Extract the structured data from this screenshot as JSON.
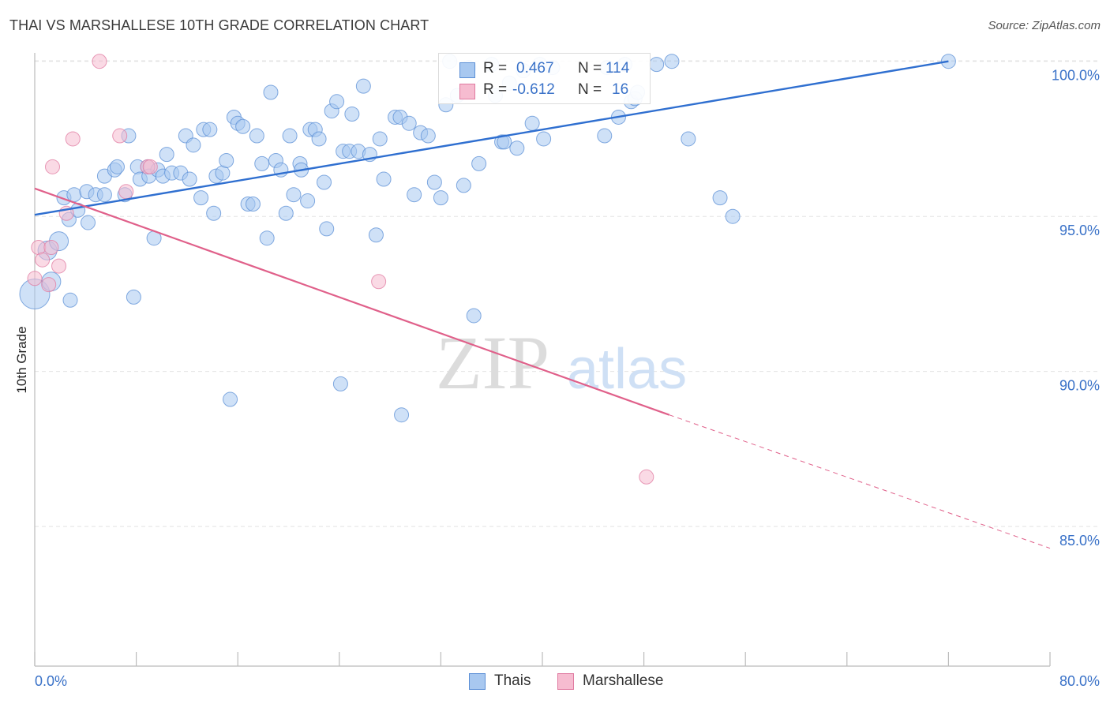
{
  "title": "THAI VS MARSHALLESE 10TH GRADE CORRELATION CHART",
  "source": "Source: ZipAtlas.com",
  "watermark": {
    "zip": "ZIP",
    "atlas": "atlas"
  },
  "legend": {
    "rows": [
      {
        "r_label": "R =",
        "r_value": "0.467",
        "n_label": "N =",
        "n_value": "114",
        "color": "#a8c8f0",
        "border": "#5b8fd6"
      },
      {
        "r_label": "R =",
        "r_value": "-0.612",
        "n_label": "N =",
        "n_value": "16",
        "color": "#f6bcd0",
        "border": "#e07aa0"
      }
    ]
  },
  "colors": {
    "thais_fill": "#a8c8f0",
    "thais_stroke": "#5b8fd6",
    "thais_line": "#2f6fd0",
    "marsh_fill": "#f6bcd0",
    "marsh_stroke": "#e07aa0",
    "marsh_line": "#e0608a",
    "tick_label": "#3a72c8",
    "grid": "#e3e3e3"
  },
  "chart_data": {
    "type": "scatter",
    "title": "THAI VS MARSHALLESE 10TH GRADE CORRELATION CHART",
    "xlabel": "",
    "ylabel": "10th Grade",
    "xlim": [
      0,
      80
    ],
    "ylim": [
      80.5,
      100.4
    ],
    "x_tick_labels": [
      "0.0%",
      "80.0%"
    ],
    "y_ticks": [
      85,
      90,
      95,
      100
    ],
    "y_tick_labels": [
      "85.0%",
      "90.0%",
      "95.0%",
      "100.0%"
    ],
    "grid": "horizontal dashed",
    "legend_position": "bottom-center",
    "series": [
      {
        "name": "Thais",
        "trend": {
          "x": [
            0,
            72
          ],
          "y": [
            95.05,
            100.0
          ]
        },
        "points": [
          [
            0.0,
            92.5,
            3
          ],
          [
            1.0,
            93.9,
            2
          ],
          [
            1.3,
            92.9,
            2
          ],
          [
            1.9,
            94.2,
            2
          ],
          [
            2.8,
            92.3,
            1
          ],
          [
            2.7,
            94.9,
            1
          ],
          [
            2.3,
            95.6,
            1
          ],
          [
            3.4,
            95.2,
            1
          ],
          [
            3.1,
            95.7,
            1
          ],
          [
            4.1,
            95.8,
            1
          ],
          [
            4.2,
            94.8,
            1
          ],
          [
            4.8,
            95.7,
            1
          ],
          [
            5.5,
            95.7,
            1
          ],
          [
            5.5,
            96.3,
            1
          ],
          [
            6.3,
            96.5,
            1
          ],
          [
            6.5,
            96.6,
            1
          ],
          [
            7.1,
            95.7,
            1
          ],
          [
            7.4,
            97.6,
            1
          ],
          [
            7.8,
            92.4,
            1
          ],
          [
            8.1,
            96.6,
            1
          ],
          [
            8.3,
            96.2,
            1
          ],
          [
            8.9,
            96.6,
            1
          ],
          [
            9.0,
            96.3,
            1
          ],
          [
            9.4,
            94.3,
            1
          ],
          [
            9.7,
            96.5,
            1
          ],
          [
            10.1,
            96.3,
            1
          ],
          [
            10.4,
            97.0,
            1
          ],
          [
            10.8,
            96.4,
            1
          ],
          [
            11.5,
            96.4,
            1
          ],
          [
            12.2,
            96.2,
            1
          ],
          [
            11.9,
            97.6,
            1
          ],
          [
            12.5,
            97.3,
            1
          ],
          [
            13.1,
            95.6,
            1
          ],
          [
            13.3,
            97.8,
            1
          ],
          [
            13.8,
            97.8,
            1
          ],
          [
            14.1,
            95.1,
            1
          ],
          [
            14.3,
            96.3,
            1
          ],
          [
            14.8,
            96.4,
            1
          ],
          [
            15.1,
            96.8,
            1
          ],
          [
            15.4,
            89.1,
            1
          ],
          [
            15.7,
            98.2,
            1
          ],
          [
            16.0,
            98.0,
            1
          ],
          [
            16.4,
            97.9,
            1
          ],
          [
            16.8,
            95.4,
            1
          ],
          [
            17.2,
            95.4,
            1
          ],
          [
            17.5,
            97.6,
            1
          ],
          [
            17.9,
            96.7,
            1
          ],
          [
            18.3,
            94.3,
            1
          ],
          [
            18.6,
            99.0,
            1
          ],
          [
            19.0,
            96.8,
            1
          ],
          [
            19.4,
            96.5,
            1
          ],
          [
            19.8,
            95.1,
            1
          ],
          [
            20.1,
            97.6,
            1
          ],
          [
            20.4,
            95.7,
            1
          ],
          [
            20.9,
            96.7,
            1
          ],
          [
            21.0,
            96.5,
            1
          ],
          [
            21.5,
            95.5,
            1
          ],
          [
            21.7,
            97.8,
            1
          ],
          [
            22.1,
            97.8,
            1
          ],
          [
            22.4,
            97.5,
            1
          ],
          [
            22.8,
            96.1,
            1
          ],
          [
            23.0,
            94.6,
            1
          ],
          [
            23.4,
            98.4,
            1
          ],
          [
            23.8,
            98.7,
            1
          ],
          [
            24.1,
            89.6,
            1
          ],
          [
            24.3,
            97.1,
            1
          ],
          [
            24.8,
            97.1,
            1
          ],
          [
            25.0,
            98.3,
            1
          ],
          [
            25.5,
            97.1,
            1
          ],
          [
            25.9,
            99.2,
            1
          ],
          [
            26.4,
            97.0,
            1
          ],
          [
            26.9,
            94.4,
            1
          ],
          [
            27.2,
            97.5,
            1
          ],
          [
            27.5,
            96.2,
            1
          ],
          [
            28.4,
            98.2,
            1
          ],
          [
            28.8,
            98.2,
            1
          ],
          [
            28.9,
            88.6,
            1
          ],
          [
            29.5,
            98.0,
            1
          ],
          [
            29.9,
            95.7,
            1
          ],
          [
            30.4,
            97.7,
            1
          ],
          [
            31.0,
            97.6,
            1
          ],
          [
            31.5,
            96.1,
            1
          ],
          [
            32.0,
            95.6,
            1
          ],
          [
            32.4,
            98.6,
            1
          ],
          [
            32.7,
            100.0,
            1
          ],
          [
            33.3,
            98.9,
            1
          ],
          [
            33.8,
            96.0,
            1
          ],
          [
            34.2,
            99.8,
            1
          ],
          [
            34.6,
            91.8,
            1
          ],
          [
            35.0,
            96.7,
            1
          ],
          [
            36.0,
            99.9,
            1
          ],
          [
            36.3,
            98.9,
            1
          ],
          [
            36.8,
            97.4,
            1
          ],
          [
            37.4,
            99.3,
            1
          ],
          [
            38.0,
            97.2,
            1
          ],
          [
            38.5,
            99.7,
            1
          ],
          [
            39.2,
            98.0,
            1
          ],
          [
            39.8,
            99.9,
            1
          ],
          [
            40.1,
            97.5,
            1
          ],
          [
            40.8,
            99.8,
            1
          ],
          [
            45.1,
            99.8,
            1
          ],
          [
            46.0,
            98.2,
            1
          ],
          [
            46.5,
            99.9,
            1
          ],
          [
            47.0,
            98.7,
            1
          ],
          [
            47.3,
            98.8,
            1
          ],
          [
            47.5,
            99.0,
            1
          ],
          [
            49.0,
            99.9,
            1
          ],
          [
            50.2,
            100.0,
            1
          ],
          [
            51.5,
            97.5,
            1
          ],
          [
            54.0,
            95.6,
            1
          ],
          [
            55.0,
            95.0,
            1
          ],
          [
            44.9,
            97.6,
            1
          ],
          [
            37.0,
            97.4,
            1
          ],
          [
            72.0,
            100.0,
            1
          ]
        ]
      },
      {
        "name": "Marshallese",
        "trend": {
          "x": [
            0,
            50
          ],
          "y": [
            95.9,
            88.6
          ]
        },
        "trend_dashed": {
          "x": [
            50,
            80
          ],
          "y": [
            88.6,
            84.3
          ]
        },
        "points": [
          [
            0.0,
            93.0,
            1
          ],
          [
            0.3,
            94.0,
            1
          ],
          [
            0.6,
            93.6,
            1
          ],
          [
            1.1,
            92.8,
            1
          ],
          [
            1.3,
            94.0,
            1
          ],
          [
            1.9,
            93.4,
            1
          ],
          [
            2.5,
            95.1,
            1
          ],
          [
            3.0,
            97.5,
            1
          ],
          [
            1.4,
            96.6,
            1
          ],
          [
            5.1,
            100.0,
            1
          ],
          [
            6.7,
            97.6,
            1
          ],
          [
            7.2,
            95.8,
            1
          ],
          [
            8.9,
            96.6,
            1
          ],
          [
            9.1,
            96.6,
            1
          ],
          [
            27.1,
            92.9,
            1
          ],
          [
            48.2,
            86.6,
            1
          ]
        ]
      }
    ]
  },
  "bottom_legend": {
    "items": [
      {
        "label": "Thais",
        "color": "#a8c8f0",
        "border": "#5b8fd6"
      },
      {
        "label": "Marshallese",
        "color": "#f6bcd0",
        "border": "#e07aa0"
      }
    ]
  }
}
